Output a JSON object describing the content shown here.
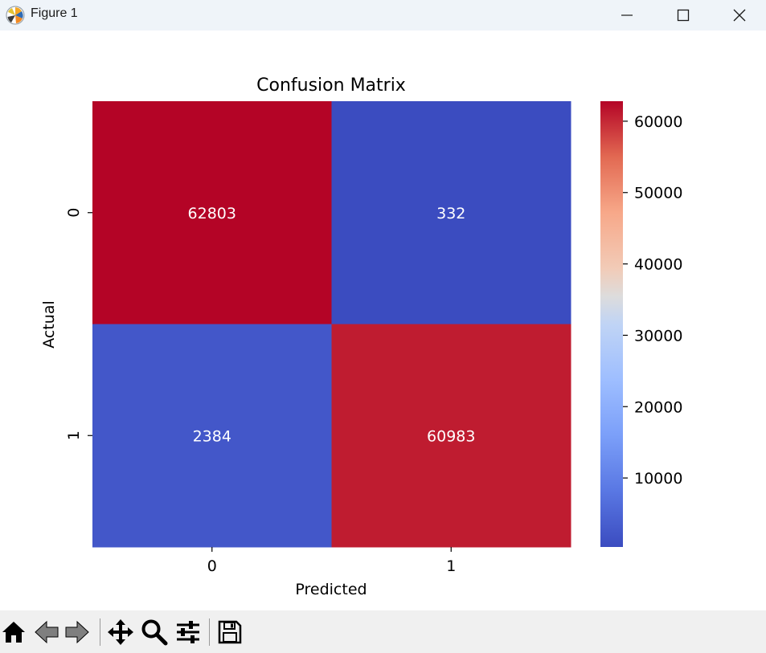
{
  "window": {
    "title": "Figure 1",
    "icon": "matplotlib-icon",
    "controls": [
      "minimize-icon",
      "maximize-icon",
      "close-icon"
    ]
  },
  "chart_data": {
    "type": "heatmap",
    "title": "Confusion Matrix",
    "xlabel": "Predicted",
    "ylabel": "Actual",
    "x_tick_labels": [
      "0",
      "1"
    ],
    "y_tick_labels": [
      "0",
      "1"
    ],
    "matrix": [
      [
        62803,
        332
      ],
      [
        2384,
        60983
      ]
    ],
    "cell_labels": [
      [
        "62803",
        "332"
      ],
      [
        "2384",
        "60983"
      ]
    ],
    "colormap": "coolwarm",
    "colorbar": {
      "min": 332,
      "max": 62803,
      "ticks": [
        10000,
        20000,
        30000,
        40000,
        50000,
        60000
      ],
      "tick_labels": [
        "10000",
        "20000",
        "30000",
        "40000",
        "50000",
        "60000"
      ]
    },
    "grid": false
  },
  "toolbar": {
    "icons": [
      "home-icon",
      "back-icon",
      "forward-icon",
      "pan-icon",
      "zoom-icon",
      "configure-subplots-icon",
      "save-icon"
    ]
  },
  "colors": {
    "titlebar_bg": "#eff4f9",
    "toolbar_bg": "#f0f0f0",
    "cell_text": "#ffffff",
    "toolbar_icon": "#000000",
    "toolbar_icon_disabled": "#7f7f7f"
  }
}
